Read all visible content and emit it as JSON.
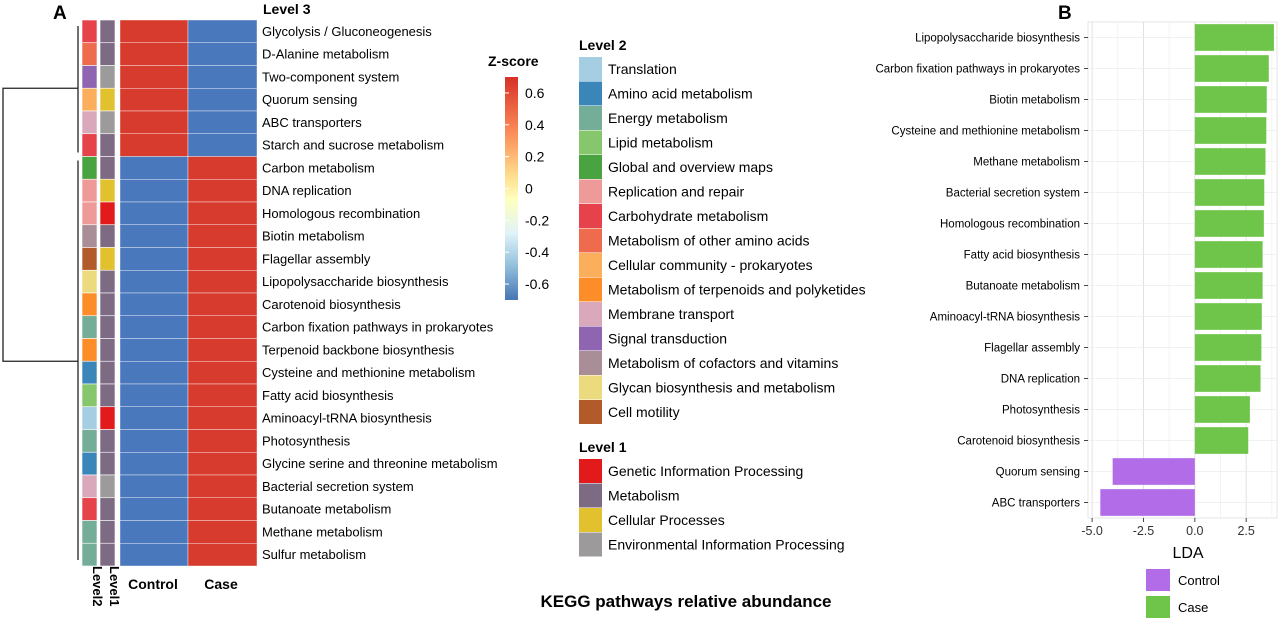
{
  "panel_a": {
    "letter": "A",
    "level3_title": "Level 3",
    "zscore_title": "Z-score",
    "zscore_ticks": [
      "0.6",
      "0.4",
      "0.2",
      "0",
      "-0.2",
      "-0.4",
      "-0.6"
    ],
    "col_labels": [
      "Control",
      "Case"
    ],
    "bar_labels": [
      "Level2",
      "Level1"
    ],
    "caption": "KEGG pathways relative abundance",
    "colors": {
      "high": "#d73b2e",
      "low": "#4a78bd"
    },
    "level2_legend": {
      "title": "Level  2",
      "items": [
        {
          "label": "Translation",
          "color": "#a6cee3"
        },
        {
          "label": "Amino acid metabolism",
          "color": "#3a86b8"
        },
        {
          "label": "Energy metabolism",
          "color": "#74ae99"
        },
        {
          "label": "Lipid metabolism",
          "color": "#86c66c"
        },
        {
          "label": "Global and overview maps",
          "color": "#4aa341"
        },
        {
          "label": "Replication and repair",
          "color": "#ee9a98"
        },
        {
          "label": "Carbohydrate metabolism",
          "color": "#e5424b"
        },
        {
          "label": "Metabolism of other amino acids",
          "color": "#ef6b4e"
        },
        {
          "label": "Cellular community - prokaryotes",
          "color": "#fbae5c"
        },
        {
          "label": "Metabolism of terpenoids and polyketides",
          "color": "#fd8d29"
        },
        {
          "label": "Membrane transport",
          "color": "#d9a9bb"
        },
        {
          "label": "Signal transduction",
          "color": "#8f64b0"
        },
        {
          "label": "Metabolism of cofactors and vitamins",
          "color": "#a98e98"
        },
        {
          "label": "Glycan biosynthesis and metabolism",
          "color": "#ecda7e"
        },
        {
          "label": "Cell motility",
          "color": "#b35a2a"
        }
      ]
    },
    "level1_legend": {
      "title": "Level 1",
      "items": [
        {
          "label": "Genetic Information Processing",
          "color": "#e31a1c"
        },
        {
          "label": "Metabolism",
          "color": "#7d6b84"
        },
        {
          "label": "Cellular Processes",
          "color": "#e2c12f"
        },
        {
          "label": "Environmental Information Processing",
          "color": "#9c9a9b"
        }
      ]
    },
    "rows": [
      {
        "label": "Glycolysis / Gluconeogenesis",
        "level2": "Carbohydrate metabolism",
        "level1": "Metabolism",
        "control": 0.7,
        "case": -0.7
      },
      {
        "label": "D-Alanine metabolism",
        "level2": "Metabolism of other amino acids",
        "level1": "Metabolism",
        "control": 0.7,
        "case": -0.7
      },
      {
        "label": "Two-component system",
        "level2": "Signal transduction",
        "level1": "Environmental Information Processing",
        "control": 0.7,
        "case": -0.7
      },
      {
        "label": "Quorum sensing",
        "level2": "Cellular community - prokaryotes",
        "level1": "Cellular Processes",
        "control": 0.7,
        "case": -0.7
      },
      {
        "label": "ABC transporters",
        "level2": "Membrane transport",
        "level1": "Environmental Information Processing",
        "control": 0.7,
        "case": -0.7
      },
      {
        "label": "Starch and sucrose metabolism",
        "level2": "Carbohydrate metabolism",
        "level1": "Metabolism",
        "control": 0.7,
        "case": -0.7
      },
      {
        "label": "Carbon metabolism",
        "level2": "Global and overview maps",
        "level1": "Metabolism",
        "control": -0.7,
        "case": 0.7
      },
      {
        "label": "DNA replication",
        "level2": "Replication and repair",
        "level1": "Cellular Processes",
        "control": -0.7,
        "case": 0.7
      },
      {
        "label": "Homologous recombination",
        "level2": "Replication and repair",
        "level1": "Genetic Information Processing",
        "control": -0.7,
        "case": 0.7
      },
      {
        "label": "Biotin metabolism",
        "level2": "Metabolism of cofactors and vitamins",
        "level1": "Metabolism",
        "control": -0.7,
        "case": 0.7
      },
      {
        "label": "Flagellar assembly",
        "level2": "Cell motility",
        "level1": "Cellular Processes",
        "control": -0.7,
        "case": 0.7
      },
      {
        "label": "Lipopolysaccharide biosynthesis",
        "level2": "Glycan biosynthesis and metabolism",
        "level1": "Metabolism",
        "control": -0.7,
        "case": 0.7
      },
      {
        "label": "Carotenoid biosynthesis",
        "level2": "Metabolism of terpenoids and polyketides",
        "level1": "Metabolism",
        "control": -0.7,
        "case": 0.7
      },
      {
        "label": "Carbon fixation pathways in prokaryotes",
        "level2": "Energy metabolism",
        "level1": "Metabolism",
        "control": -0.7,
        "case": 0.7
      },
      {
        "label": "Terpenoid backbone biosynthesis",
        "level2": "Metabolism of terpenoids and polyketides",
        "level1": "Metabolism",
        "control": -0.7,
        "case": 0.7
      },
      {
        "label": "Cysteine and methionine metabolism",
        "level2": "Amino acid metabolism",
        "level1": "Metabolism",
        "control": -0.7,
        "case": 0.7
      },
      {
        "label": "Fatty acid biosynthesis",
        "level2": "Lipid metabolism",
        "level1": "Metabolism",
        "control": -0.7,
        "case": 0.7
      },
      {
        "label": "Aminoacyl-tRNA biosynthesis",
        "level2": "Translation",
        "level1": "Genetic Information Processing",
        "control": -0.7,
        "case": 0.7
      },
      {
        "label": "Photosynthesis",
        "level2": "Energy metabolism",
        "level1": "Metabolism",
        "control": -0.7,
        "case": 0.7
      },
      {
        "label": "Glycine serine and threonine metabolism",
        "level2": "Amino acid metabolism",
        "level1": "Metabolism",
        "control": -0.7,
        "case": 0.7
      },
      {
        "label": "Bacterial secretion system",
        "level2": "Membrane transport",
        "level1": "Environmental Information Processing",
        "control": -0.7,
        "case": 0.7
      },
      {
        "label": "Butanoate metabolism",
        "level2": "Carbohydrate metabolism",
        "level1": "Metabolism",
        "control": -0.7,
        "case": 0.7
      },
      {
        "label": "Methane metabolism",
        "level2": "Energy metabolism",
        "level1": "Metabolism",
        "control": -0.7,
        "case": 0.7
      },
      {
        "label": "Sulfur metabolism",
        "level2": "Energy metabolism",
        "level1": "Metabolism",
        "control": -0.7,
        "case": 0.7
      }
    ]
  },
  "chart_data": {
    "type": "bar",
    "orientation": "horizontal",
    "panel": "B",
    "categories": [
      "Lipopolysaccharide biosynthesis",
      "Carbon fixation pathways in prokaryotes",
      "Biotin metabolism",
      "Cysteine and methionine metabolism",
      "Methane metabolism",
      "Bacterial secretion system",
      "Homologous recombination",
      "Fatty acid biosynthesis",
      "Butanoate metabolism",
      "Aminoacyl-tRNA biosynthesis",
      "Flagellar assembly",
      "DNA replication",
      "Photosynthesis",
      "Carotenoid biosynthesis",
      "Quorum sensing",
      "ABC transporters"
    ],
    "values": [
      3.85,
      3.6,
      3.5,
      3.48,
      3.44,
      3.38,
      3.36,
      3.3,
      3.3,
      3.26,
      3.24,
      3.2,
      2.68,
      2.6,
      -4.0,
      -4.6
    ],
    "groups": [
      "Case",
      "Case",
      "Case",
      "Case",
      "Case",
      "Case",
      "Case",
      "Case",
      "Case",
      "Case",
      "Case",
      "Case",
      "Case",
      "Case",
      "Control",
      "Control"
    ],
    "xlabel": "LDA",
    "xlim": [
      -5.2,
      4.0
    ],
    "xticks": [
      "-5.0",
      "-2.5",
      "0.0",
      "2.5"
    ],
    "grid": true,
    "legend": {
      "placement": "bottom",
      "items": [
        {
          "name": "Control",
          "color": "#b26ce8"
        },
        {
          "name": "Case",
          "color": "#6fc44a"
        }
      ]
    }
  }
}
